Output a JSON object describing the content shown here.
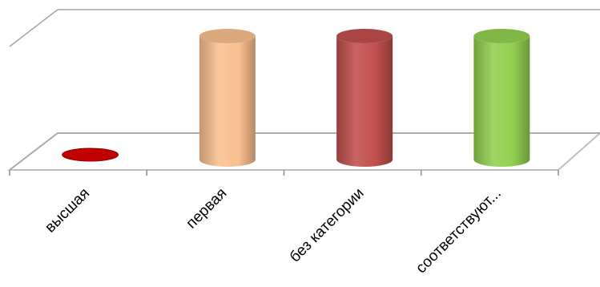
{
  "chart_data": {
    "type": "bar",
    "style": "3d-cylinder",
    "categories": [
      "высшая",
      "первая",
      "без категории",
      "соответствуют..."
    ],
    "values": [
      0,
      1,
      1,
      1
    ],
    "ylim": [
      0,
      1
    ],
    "colors": [
      "#c00000",
      "#fac090",
      "#c0504d",
      "#92d050"
    ],
    "grid": true,
    "legend": "none"
  }
}
